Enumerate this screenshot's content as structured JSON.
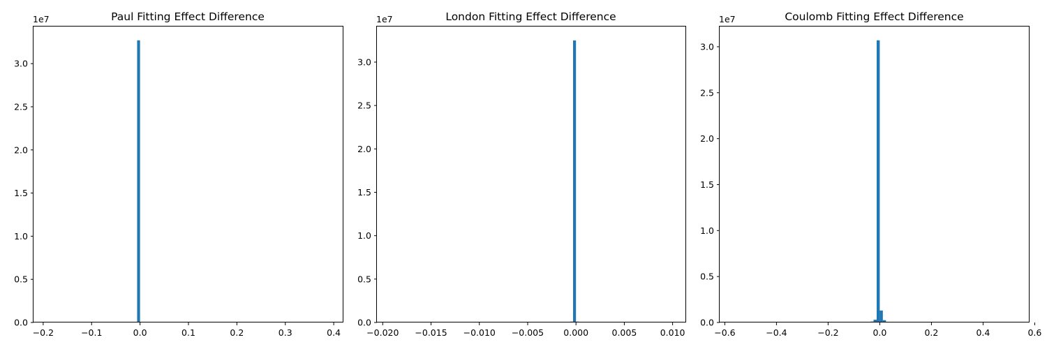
{
  "colors": {
    "bar": "#1f77b4",
    "axes": "#000000",
    "background": "#ffffff"
  },
  "chart_data": [
    {
      "type": "bar",
      "title": "Paul Fitting Effect Difference",
      "xlabel": "",
      "ylabel": "",
      "xlim": [
        -0.22,
        0.42
      ],
      "ylim": [
        0,
        34300000
      ],
      "y_multiplier_label": "1e7",
      "grid": false,
      "xticks": [
        -0.2,
        -0.1,
        0.0,
        0.1,
        0.2,
        0.3,
        0.4
      ],
      "xtick_labels": [
        "−0.2",
        "−0.1",
        "0.0",
        "0.1",
        "0.2",
        "0.3",
        "0.4"
      ],
      "yticks": [
        0,
        5000000,
        10000000,
        15000000,
        20000000,
        25000000,
        30000000
      ],
      "ytick_labels": [
        "0.0",
        "0.5",
        "1.0",
        "1.5",
        "2.0",
        "2.5",
        "3.0"
      ],
      "bin_width": 0.006,
      "bars": [
        {
          "x0": -0.006,
          "x1": 0.0,
          "value": 32700000
        }
      ]
    },
    {
      "type": "bar",
      "title": "London Fitting Effect Difference",
      "xlabel": "",
      "ylabel": "",
      "xlim": [
        -0.0206,
        0.0114
      ],
      "ylim": [
        0,
        34100000
      ],
      "y_multiplier_label": "1e7",
      "grid": false,
      "xticks": [
        -0.02,
        -0.015,
        -0.01,
        -0.005,
        0.0,
        0.005,
        0.01
      ],
      "xtick_labels": [
        "−0.020",
        "−0.015",
        "−0.010",
        "−0.005",
        "0.000",
        "0.005",
        "0.010"
      ],
      "yticks": [
        0,
        5000000,
        10000000,
        15000000,
        20000000,
        25000000,
        30000000
      ],
      "ytick_labels": [
        "0.0",
        "0.5",
        "1.0",
        "1.5",
        "2.0",
        "2.5",
        "3.0"
      ],
      "bin_width": 0.0003,
      "bars": [
        {
          "x0": -0.0006,
          "x1": -0.0003,
          "value": 100000
        },
        {
          "x0": -0.0003,
          "x1": 0.0,
          "value": 32500000
        },
        {
          "x0": 0.0,
          "x1": 0.0003,
          "value": 100000
        }
      ]
    },
    {
      "type": "bar",
      "title": "Coulomb Fitting Effect Difference",
      "xlabel": "",
      "ylabel": "",
      "xlim": [
        -0.62,
        0.58
      ],
      "ylim": [
        0,
        32200000
      ],
      "y_multiplier_label": "1e7",
      "grid": false,
      "xticks": [
        -0.6,
        -0.4,
        -0.2,
        0.0,
        0.2,
        0.4,
        0.6
      ],
      "xtick_labels": [
        "−0.6",
        "−0.4",
        "−0.2",
        "0.0",
        "0.2",
        "0.4",
        "0.6"
      ],
      "yticks": [
        0,
        5000000,
        10000000,
        15000000,
        20000000,
        25000000,
        30000000
      ],
      "ytick_labels": [
        "0.0",
        "0.5",
        "1.0",
        "1.5",
        "2.0",
        "2.5",
        "3.0"
      ],
      "bin_width": 0.012,
      "bars": [
        {
          "x0": -0.036,
          "x1": -0.024,
          "value": 100000
        },
        {
          "x0": -0.024,
          "x1": -0.012,
          "value": 300000
        },
        {
          "x0": -0.012,
          "x1": 0.0,
          "value": 30700000
        },
        {
          "x0": 0.0,
          "x1": 0.012,
          "value": 1300000
        },
        {
          "x0": 0.012,
          "x1": 0.024,
          "value": 250000
        },
        {
          "x0": 0.024,
          "x1": 0.036,
          "value": 60000
        }
      ]
    }
  ]
}
